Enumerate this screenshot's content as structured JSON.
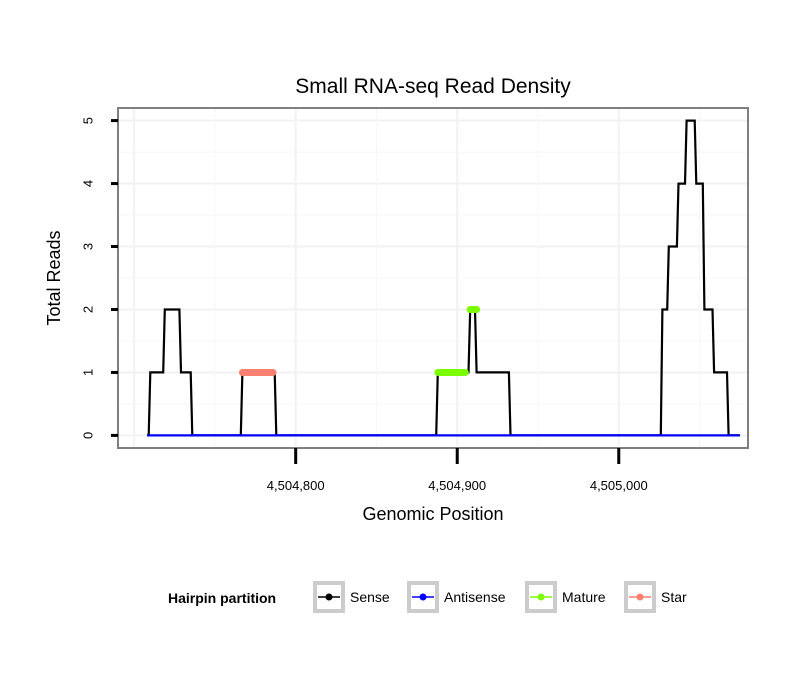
{
  "chart_data": {
    "type": "line",
    "title": "Small RNA-seq Read Density",
    "xlabel": "Genomic Position",
    "ylabel": "Total Reads",
    "xlim": [
      4504690,
      4505080
    ],
    "ylim": [
      -0.2,
      5.2
    ],
    "x_ticks": [
      4504800,
      4504900,
      4505000
    ],
    "x_tick_labels": [
      "4,504,800",
      "4,504,900",
      "4,505,000"
    ],
    "y_ticks": [
      0,
      1,
      2,
      3,
      4,
      5
    ],
    "y_tick_labels": [
      "0",
      "1",
      "2",
      "3",
      "4",
      "5"
    ],
    "grid": true,
    "legend": {
      "title": "Hairpin partition",
      "position": "bottom",
      "entries": [
        "Sense",
        "Antisense",
        "Mature",
        "Star"
      ]
    },
    "series": [
      {
        "name": "Sense",
        "color": "#000000",
        "style": "step",
        "x": [
          4504708,
          4504709,
          4504710,
          4504718,
          4504719,
          4504728,
          4504729,
          4504735,
          4504736,
          4504747,
          4504748,
          4504766,
          4504767,
          4504787,
          4504788,
          4504887,
          4504888,
          4504907,
          4504908,
          4504911,
          4504912,
          4504932,
          4504933,
          4505026,
          4505027,
          4505030,
          4505031,
          4505036,
          4505037,
          4505041,
          4505042,
          4505047,
          4505048,
          4505052,
          4505053,
          4505058,
          4505059,
          4505067,
          4505068,
          4505075
        ],
        "y": [
          0,
          0,
          1,
          1,
          2,
          2,
          1,
          1,
          0,
          0,
          0,
          0,
          1,
          1,
          0,
          0,
          1,
          1,
          2,
          2,
          1,
          1,
          0,
          0,
          2,
          2,
          3,
          3,
          4,
          4,
          5,
          5,
          4,
          4,
          2,
          2,
          1,
          1,
          0,
          0
        ]
      },
      {
        "name": "Antisense",
        "color": "#0000ff",
        "style": "line",
        "x": [
          4504708,
          4505075
        ],
        "y": [
          0,
          0
        ]
      },
      {
        "name": "Mature",
        "color": "#7cfc00",
        "style": "segments",
        "segments": [
          {
            "x": [
              4504888,
              4504905
            ],
            "y": 1
          },
          {
            "x": [
              4504908,
              4504912
            ],
            "y": 2
          }
        ]
      },
      {
        "name": "Star",
        "color": "#fa8072",
        "style": "segments",
        "segments": [
          {
            "x": [
              4504767,
              4504786
            ],
            "y": 1
          }
        ]
      }
    ]
  }
}
